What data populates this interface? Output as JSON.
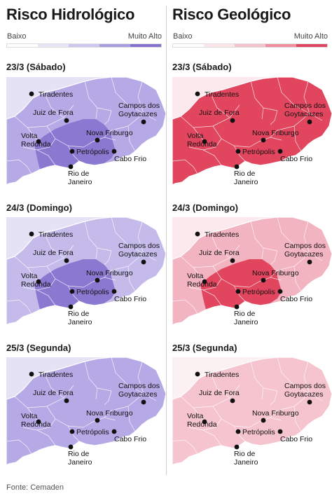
{
  "panels": [
    {
      "id": "hidro",
      "title": "Risco Hidrológico",
      "legend": {
        "low": "Baixo",
        "high": "Muito Alto",
        "colors": [
          "#ffffff",
          "#e8e5f7",
          "#cdc6ee",
          "#a99de0",
          "#8470cf"
        ]
      },
      "days": [
        {
          "label": "23/3 (Sábado)",
          "outside": "#e6e2f6",
          "base": "#b6aae6",
          "core": "#8b78d1",
          "core_level": "Muito Alto"
        },
        {
          "label": "24/3 (Domingo)",
          "outside": "#e6e2f6",
          "base": "#c4bbeb",
          "core": "#8b78d1",
          "core_level": "Muito Alto"
        },
        {
          "label": "25/3 (Segunda)",
          "outside": "#e6e2f6",
          "base": "#b6aae6",
          "core": "#b6aae6",
          "core_level": "Alto"
        }
      ]
    },
    {
      "id": "geo",
      "title": "Risco Geológico",
      "legend": {
        "low": "Baixo",
        "high": "Muito Alto",
        "colors": [
          "#ffffff",
          "#fbe6ea",
          "#f6c2cc",
          "#f08ea0",
          "#e0455f"
        ]
      },
      "days": [
        {
          "label": "23/3 (Sábado)",
          "outside": "#fbe9ed",
          "base": "#e2465f",
          "core": "#e2465f",
          "core_level": "Muito Alto"
        },
        {
          "label": "24/3 (Domingo)",
          "outside": "#fbe9ed",
          "base": "#f3b4c1",
          "core": "#e2465f",
          "core_level": "Muito Alto"
        },
        {
          "label": "25/3 (Segunda)",
          "outside": "#fbf1f3",
          "base": "#f6c4ce",
          "core": "#f6c4ce",
          "core_level": "Moderado"
        }
      ]
    }
  ],
  "cities": [
    {
      "name": "Tiradentes",
      "label": "Tiradentes"
    },
    {
      "name": "Juiz de Fora",
      "label": "Juiz de Fora"
    },
    {
      "name": "Campos dos Goytacazes",
      "label": [
        "Campos dos",
        "Goytacazes"
      ]
    },
    {
      "name": "Nova Friburgo",
      "label": "Nova Friburgo"
    },
    {
      "name": "Volta Redonda",
      "label": [
        "Volta",
        "Redonda"
      ]
    },
    {
      "name": "Petrópolis",
      "label": "Petrópolis"
    },
    {
      "name": "Cabo Frio",
      "label": "Cabo Frio"
    },
    {
      "name": "Rio de Janeiro",
      "label": [
        "Rio de",
        "Janeiro"
      ]
    }
  ],
  "source": "Fonte: Cemaden"
}
